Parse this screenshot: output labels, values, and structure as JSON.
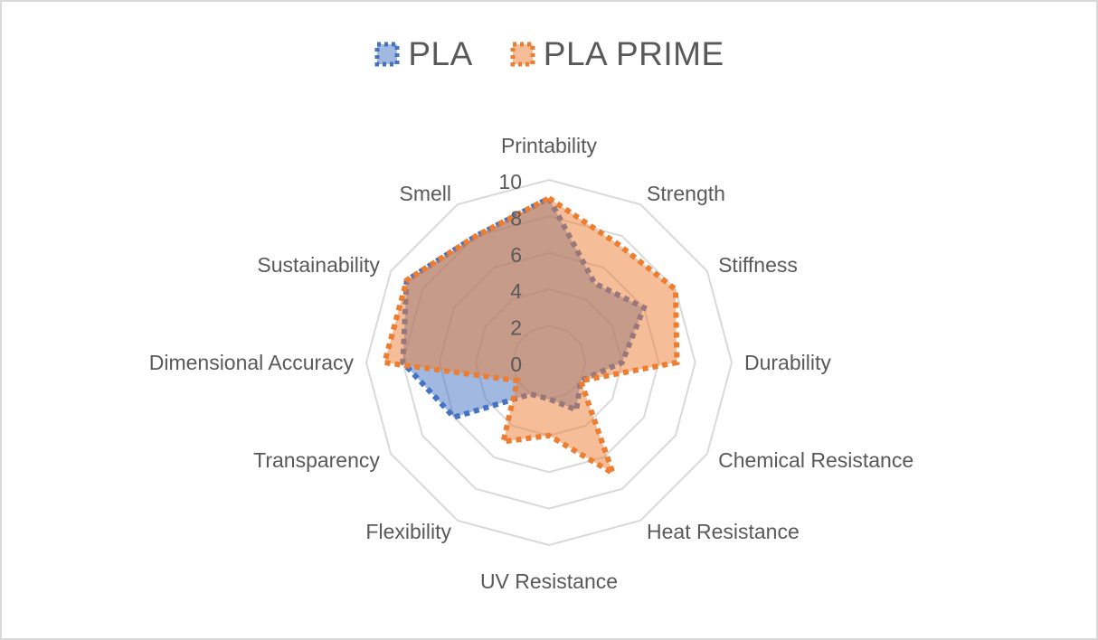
{
  "legend": {
    "items": [
      {
        "label": "PLA",
        "series_index": 0
      },
      {
        "label": "PLA PRIME",
        "series_index": 1
      }
    ]
  },
  "colors": {
    "pla_line": "#4472c4",
    "pla_fill": "#4472c4",
    "pla_prime_line": "#ed7d31",
    "pla_prime_fill": "#ed7d31",
    "grid": "#d9d9d9",
    "text": "#595959",
    "border": "#d9d9d9"
  },
  "chart_data": {
    "type": "radar",
    "title": "",
    "categories": [
      "Printability",
      "Strength",
      "Stiffness",
      "Durability",
      "Chemical Resistance",
      "Heat Resistance",
      "UV Resistance",
      "Flexibility",
      "Transparency",
      "Dimensional Accuracy",
      "Sustainability",
      "Smell"
    ],
    "series": [
      {
        "name": "PLA",
        "values": [
          9,
          5,
          6,
          4,
          2,
          3,
          2,
          2,
          6,
          8,
          9,
          8
        ]
      },
      {
        "name": "PLA PRIME",
        "values": [
          9,
          7.5,
          8,
          7,
          2,
          7,
          4,
          5,
          2,
          9,
          9,
          8
        ]
      }
    ],
    "radial_axis": {
      "min": 0,
      "max": 10,
      "ticks": [
        0,
        2,
        4,
        6,
        8,
        10
      ]
    },
    "grid": true,
    "legend_position": "top",
    "fill": "filled, semi-transparent",
    "line_style": "dotted"
  }
}
